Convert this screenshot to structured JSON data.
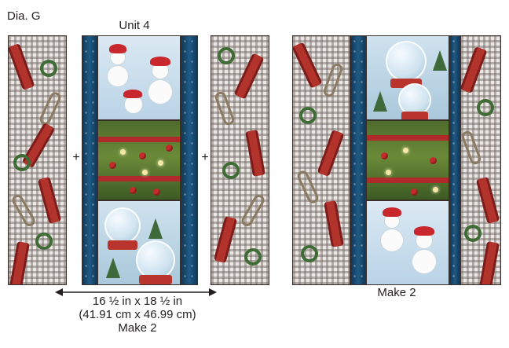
{
  "figure": {
    "label": "Dia. G",
    "unit_label": "Unit 4",
    "plus_symbol": "+",
    "dimension_line1": "16 ½ in x 18 ½ in",
    "dimension_line2": "(41.91 cm x 46.99 cm)",
    "make_left": "Make 2",
    "make_right": "Make 2"
  },
  "colors": {
    "sashing_blue": "#1f5b86",
    "sled_red": "#b2332c",
    "gingham_gray": "#8c827d",
    "arrow": "#231f20"
  }
}
